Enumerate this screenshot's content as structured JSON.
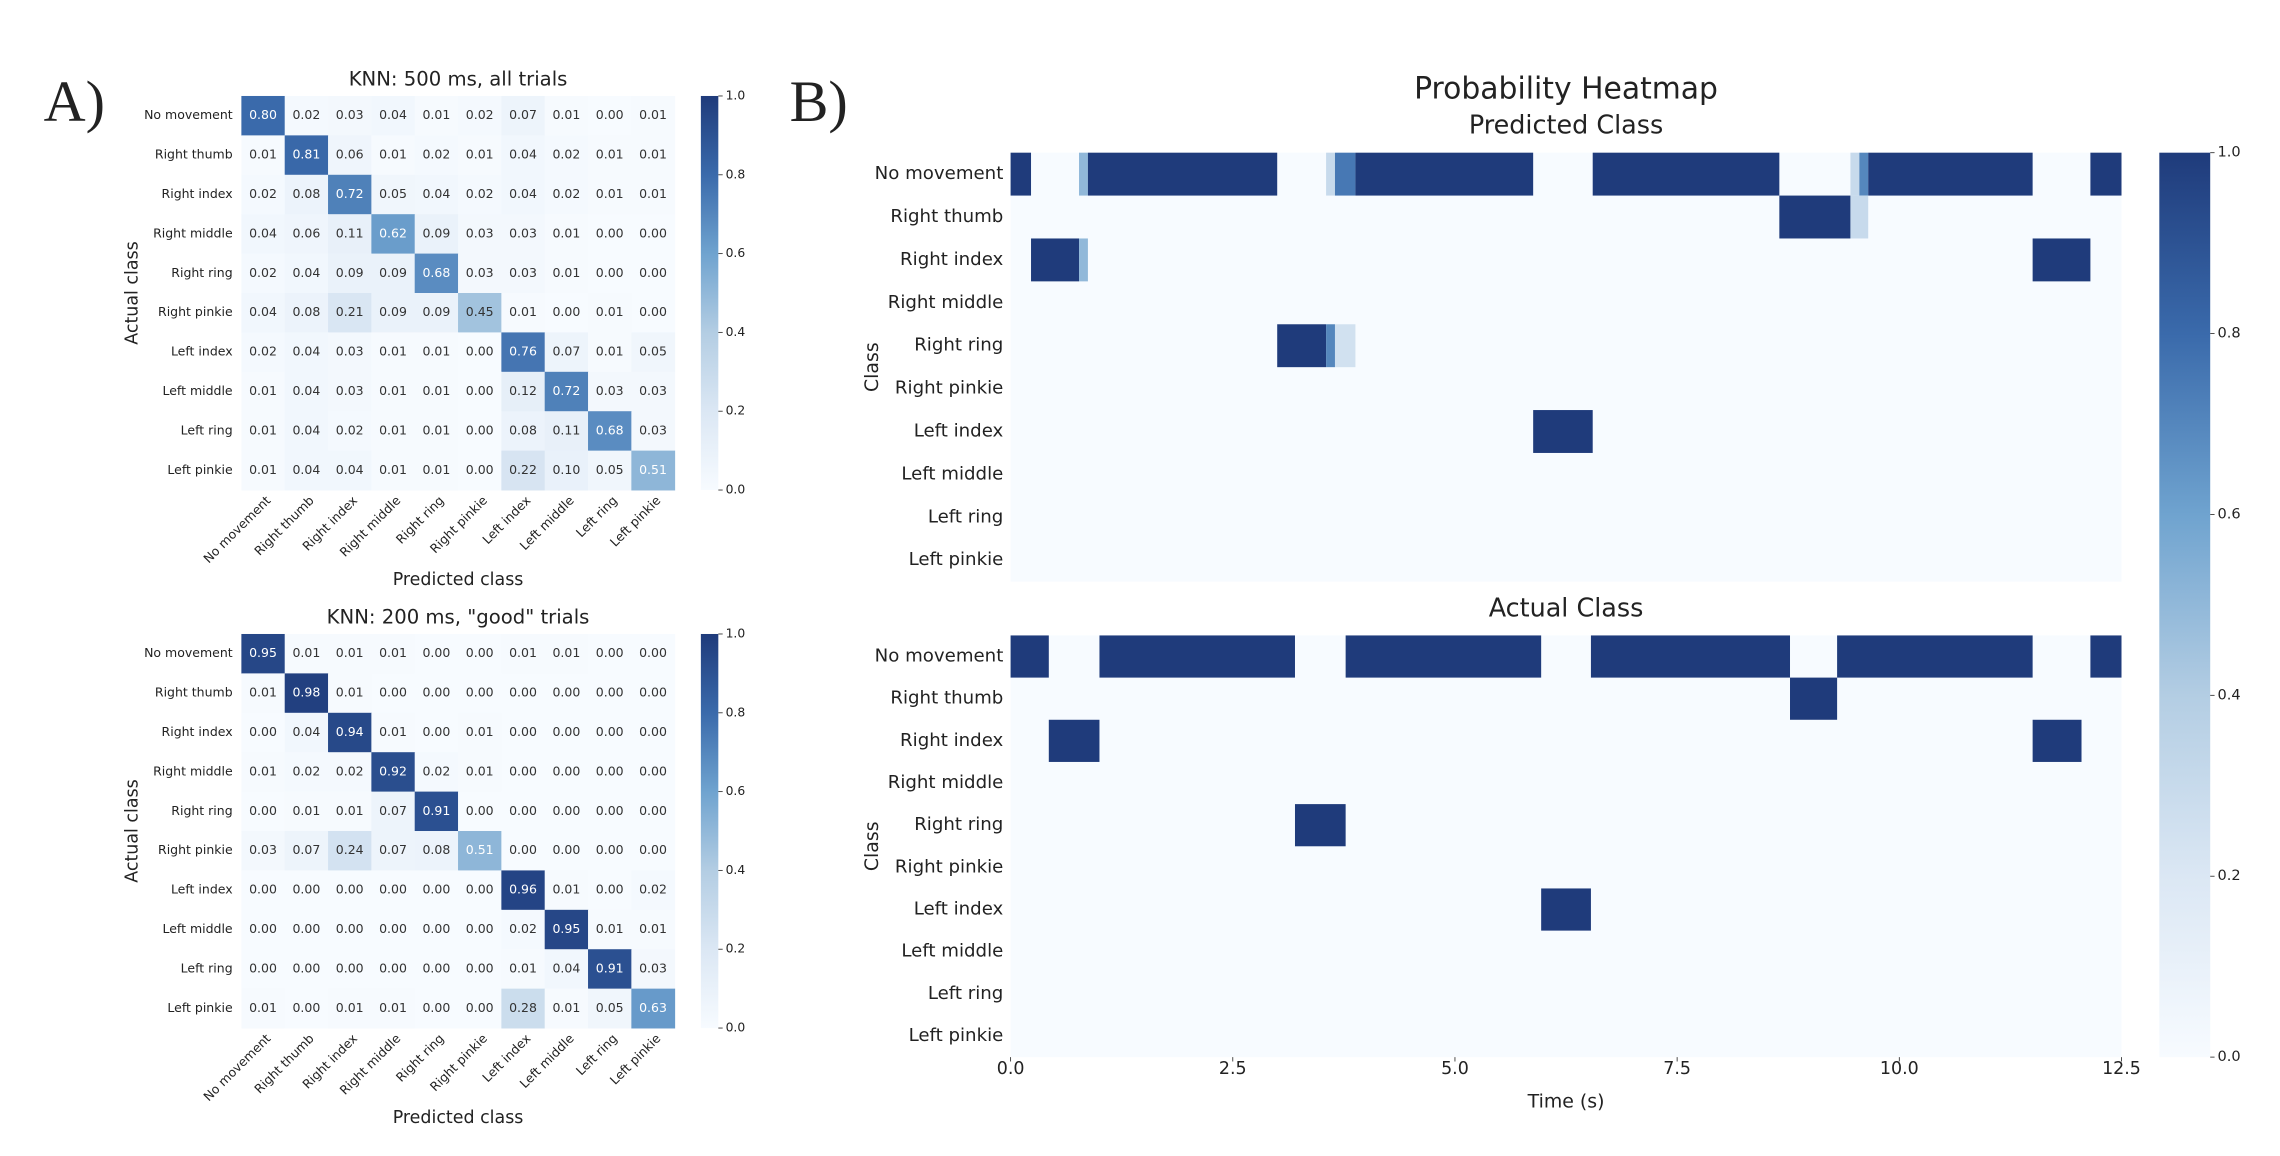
{
  "chart_data": [
    {
      "type": "confusion",
      "panel_label": "A)",
      "title": "KNN: 500 ms, all trials",
      "x_label": "Predicted class",
      "y_label": "Actual class",
      "categories": [
        "No movement",
        "Right thumb",
        "Right index",
        "Right middle",
        "Right ring",
        "Right pinkie",
        "Left index",
        "Left middle",
        "Left ring",
        "Left pinkie"
      ],
      "values": [
        [
          0.8,
          0.02,
          0.03,
          0.04,
          0.01,
          0.02,
          0.07,
          0.01,
          0.0,
          0.01
        ],
        [
          0.01,
          0.81,
          0.06,
          0.01,
          0.02,
          0.01,
          0.04,
          0.02,
          0.01,
          0.01
        ],
        [
          0.02,
          0.08,
          0.72,
          0.05,
          0.04,
          0.02,
          0.04,
          0.02,
          0.01,
          0.01
        ],
        [
          0.04,
          0.06,
          0.11,
          0.62,
          0.09,
          0.03,
          0.03,
          0.01,
          0.0,
          0.0
        ],
        [
          0.02,
          0.04,
          0.09,
          0.09,
          0.68,
          0.03,
          0.03,
          0.01,
          0.0,
          0.0
        ],
        [
          0.04,
          0.08,
          0.21,
          0.09,
          0.09,
          0.45,
          0.01,
          0.0,
          0.01,
          0.0
        ],
        [
          0.02,
          0.04,
          0.03,
          0.01,
          0.01,
          0.0,
          0.76,
          0.07,
          0.01,
          0.05
        ],
        [
          0.01,
          0.04,
          0.03,
          0.01,
          0.01,
          0.0,
          0.12,
          0.72,
          0.03,
          0.03
        ],
        [
          0.01,
          0.04,
          0.02,
          0.01,
          0.01,
          0.0,
          0.08,
          0.11,
          0.68,
          0.03
        ],
        [
          0.01,
          0.04,
          0.04,
          0.01,
          0.01,
          0.0,
          0.22,
          0.1,
          0.05,
          0.51
        ]
      ],
      "value_labels": [
        [
          "0.80",
          "0.02",
          "0.03",
          "0.04",
          "0.01",
          "0.02",
          "0.07",
          "0.01",
          "0.00",
          "0.01"
        ],
        [
          "0.01",
          "0.81",
          "0.06",
          "0.01",
          "0.02",
          "0.01",
          "0.04",
          "0.02",
          "0.01",
          "0.01"
        ],
        [
          "0.02",
          "0.08",
          "0.72",
          "0.05",
          "0.04",
          "0.02",
          "0.04",
          "0.02",
          "0.01",
          "0.01"
        ],
        [
          "0.04",
          "0.06",
          "0.11",
          "0.62",
          "0.09",
          "0.03",
          "0.03",
          "0.01",
          "0.00",
          "0.00"
        ],
        [
          "0.02",
          "0.04",
          "0.09",
          "0.09",
          "0.68",
          "0.03",
          "0.03",
          "0.01",
          "0.00",
          "0.00"
        ],
        [
          "0.04",
          "0.08",
          "0.21",
          "0.09",
          "0.09",
          "0.45",
          "0.01",
          "0.00",
          "0.01",
          "0.00"
        ],
        [
          "0.02",
          "0.04",
          "0.03",
          "0.01",
          "0.01",
          "0.00",
          "0.76",
          "0.07",
          "0.01",
          "0.05"
        ],
        [
          "0.01",
          "0.04",
          "0.03",
          "0.01",
          "0.01",
          "0.00",
          "0.12",
          "0.72",
          "0.03",
          "0.03"
        ],
        [
          "0.01",
          "0.04",
          "0.02",
          "0.01",
          "0.01",
          "0.00",
          "0.08",
          "0.11",
          "0.68",
          "0.03"
        ],
        [
          "0.01",
          "0.04",
          "0.04",
          "0.01",
          "0.01",
          "0.00",
          "0.22",
          "0.10",
          "0.05",
          "0.51"
        ]
      ],
      "clim": [
        0,
        1
      ],
      "colorbar_ticks": [
        {
          "value": 0,
          "label": "0.0"
        },
        0.2,
        0.4,
        0.6,
        0.8,
        {
          "value": 1,
          "label": "1.0"
        }
      ],
      "colormap": [
        "#f7fbff",
        "#dbe7f4",
        "#b3cde3",
        "#6fa3cf",
        "#3a6aab",
        "#1f3b7b"
      ]
    },
    {
      "type": "confusion",
      "title": "KNN: 200 ms, \"good\" trials",
      "x_label": "Predicted class",
      "y_label": "Actual class",
      "categories": [
        "No movement",
        "Right thumb",
        "Right index",
        "Right middle",
        "Right ring",
        "Right pinkie",
        "Left index",
        "Left middle",
        "Left ring",
        "Left pinkie"
      ],
      "values": [
        [
          0.95,
          0.01,
          0.01,
          0.01,
          0.0,
          0.0,
          0.01,
          0.01,
          0.0,
          0.0
        ],
        [
          0.01,
          0.98,
          0.01,
          0.0,
          0.0,
          0.0,
          0.0,
          0.0,
          0.0,
          0.0
        ],
        [
          0.0,
          0.04,
          0.94,
          0.01,
          0.0,
          0.01,
          0.0,
          0.0,
          0.0,
          0.0
        ],
        [
          0.01,
          0.02,
          0.02,
          0.92,
          0.02,
          0.01,
          0.0,
          0.0,
          0.0,
          0.0
        ],
        [
          0.0,
          0.01,
          0.01,
          0.07,
          0.91,
          0.0,
          0.0,
          0.0,
          0.0,
          0.0
        ],
        [
          0.03,
          0.07,
          0.24,
          0.07,
          0.08,
          0.51,
          0.0,
          0.0,
          0.0,
          0.0
        ],
        [
          0.0,
          0.0,
          0.0,
          0.0,
          0.0,
          0.0,
          0.96,
          0.01,
          0.0,
          0.02
        ],
        [
          0.0,
          0.0,
          0.0,
          0.0,
          0.0,
          0.0,
          0.02,
          0.95,
          0.01,
          0.01
        ],
        [
          0.0,
          0.0,
          0.0,
          0.0,
          0.0,
          0.0,
          0.01,
          0.04,
          0.91,
          0.03
        ],
        [
          0.01,
          0.0,
          0.01,
          0.01,
          0.0,
          0.0,
          0.28,
          0.01,
          0.05,
          0.63
        ]
      ],
      "value_labels": [
        [
          "0.95",
          "0.01",
          "0.01",
          "0.01",
          "0.00",
          "0.00",
          "0.01",
          "0.01",
          "0.00",
          "0.00"
        ],
        [
          "0.01",
          "0.98",
          "0.01",
          "0.00",
          "0.00",
          "0.00",
          "0.00",
          "0.00",
          "0.00",
          "0.00"
        ],
        [
          "0.00",
          "0.04",
          "0.94",
          "0.01",
          "0.00",
          "0.01",
          "0.00",
          "0.00",
          "0.00",
          "0.00"
        ],
        [
          "0.01",
          "0.02",
          "0.02",
          "0.92",
          "0.02",
          "0.01",
          "0.00",
          "0.00",
          "0.00",
          "0.00"
        ],
        [
          "0.00",
          "0.01",
          "0.01",
          "0.07",
          "0.91",
          "0.00",
          "0.00",
          "0.00",
          "0.00",
          "0.00"
        ],
        [
          "0.03",
          "0.07",
          "0.24",
          "0.07",
          "0.08",
          "0.51",
          "0.00",
          "0.00",
          "0.00",
          "0.00"
        ],
        [
          "0.00",
          "0.00",
          "0.00",
          "0.00",
          "0.00",
          "0.00",
          "0.96",
          "0.01",
          "0.00",
          "0.02"
        ],
        [
          "0.00",
          "0.00",
          "0.00",
          "0.00",
          "0.00",
          "0.00",
          "0.02",
          "0.95",
          "0.01",
          "0.01"
        ],
        [
          "0.00",
          "0.00",
          "0.00",
          "0.00",
          "0.00",
          "0.00",
          "0.01",
          "0.04",
          "0.91",
          "0.03"
        ],
        [
          "0.01",
          "0.00",
          "0.01",
          "0.01",
          "0.00",
          "0.00",
          "0.28",
          "0.01",
          "0.05",
          "0.63"
        ]
      ],
      "clim": [
        0,
        1
      ],
      "colorbar_ticks": [
        {
          "value": 0,
          "label": "0.0"
        },
        0.2,
        0.4,
        0.6,
        0.8,
        {
          "value": 1,
          "label": "1.0"
        }
      ],
      "colormap": [
        "#f7fbff",
        "#dbe7f4",
        "#b3cde3",
        "#6fa3cf",
        "#3a6aab",
        "#1f3b7b"
      ]
    },
    {
      "type": "timeline_heatmap",
      "panel_label": "B)",
      "title": "Probability Heatmap",
      "x_label": "Time (s)",
      "y_label": "Class",
      "categories": [
        "No movement",
        "Right thumb",
        "Right index",
        "Right middle",
        "Right ring",
        "Right pinkie",
        "Left index",
        "Left middle",
        "Left ring",
        "Left pinkie"
      ],
      "xlim": [
        0,
        12.5
      ],
      "xticks": [
        {
          "value": 0,
          "label": "0.0"
        },
        2.5,
        {
          "value": 5,
          "label": "5.0"
        },
        7.5,
        {
          "value": 10,
          "label": "10.0"
        },
        12.5
      ],
      "clim": [
        0,
        1
      ],
      "colorbar_ticks": [
        {
          "value": 0,
          "label": "0.0"
        },
        0.2,
        0.4,
        0.6,
        0.8,
        {
          "value": 1,
          "label": "1.0"
        }
      ],
      "colormap": [
        "#f7fbff",
        "#dbe7f4",
        "#b3cde3",
        "#6fa3cf",
        "#3a6aab",
        "#1f3b7b"
      ],
      "panels": [
        {
          "subtitle": "Predicted Class",
          "series": [
            [
              {
                "start": 0,
                "end": 0.23,
                "value": 1
              },
              {
                "start": 0.77,
                "end": 0.87,
                "value": 0.5
              },
              {
                "start": 0.87,
                "end": 3.0,
                "value": 1
              },
              {
                "start": 3.55,
                "end": 3.65,
                "value": 0.3
              },
              {
                "start": 3.65,
                "end": 3.88,
                "value": 0.75
              },
              {
                "start": 3.88,
                "end": 5.88,
                "value": 1
              },
              {
                "start": 6.55,
                "end": 8.65,
                "value": 1
              },
              {
                "start": 9.45,
                "end": 9.55,
                "value": 0.3
              },
              {
                "start": 9.55,
                "end": 9.65,
                "value": 0.7
              },
              {
                "start": 9.65,
                "end": 11.5,
                "value": 1
              },
              {
                "start": 12.15,
                "end": 12.5,
                "value": 1
              }
            ],
            [
              {
                "start": 8.65,
                "end": 9.45,
                "value": 1
              },
              {
                "start": 9.45,
                "end": 9.65,
                "value": 0.3
              }
            ],
            [
              {
                "start": 0.23,
                "end": 0.77,
                "value": 1
              },
              {
                "start": 0.77,
                "end": 0.87,
                "value": 0.5
              },
              {
                "start": 11.5,
                "end": 12.15,
                "value": 1
              }
            ],
            [],
            [
              {
                "start": 3.0,
                "end": 3.55,
                "value": 1
              },
              {
                "start": 3.55,
                "end": 3.65,
                "value": 0.7
              },
              {
                "start": 3.65,
                "end": 3.88,
                "value": 0.25
              }
            ],
            [],
            [
              {
                "start": 5.88,
                "end": 6.55,
                "value": 1
              }
            ],
            [],
            [],
            []
          ]
        },
        {
          "subtitle": "Actual Class",
          "series": [
            [
              {
                "start": 0,
                "end": 0.43,
                "value": 1
              },
              {
                "start": 1.0,
                "end": 3.2,
                "value": 1
              },
              {
                "start": 3.77,
                "end": 5.97,
                "value": 1
              },
              {
                "start": 6.53,
                "end": 8.77,
                "value": 1
              },
              {
                "start": 9.3,
                "end": 11.5,
                "value": 1
              },
              {
                "start": 12.15,
                "end": 12.5,
                "value": 1
              }
            ],
            [
              {
                "start": 8.77,
                "end": 9.3,
                "value": 1
              }
            ],
            [
              {
                "start": 0.43,
                "end": 1.0,
                "value": 1
              },
              {
                "start": 11.5,
                "end": 12.05,
                "value": 1
              }
            ],
            [],
            [
              {
                "start": 3.2,
                "end": 3.77,
                "value": 1
              }
            ],
            [],
            [
              {
                "start": 5.97,
                "end": 6.53,
                "value": 1
              }
            ],
            [],
            [],
            []
          ]
        }
      ]
    }
  ]
}
